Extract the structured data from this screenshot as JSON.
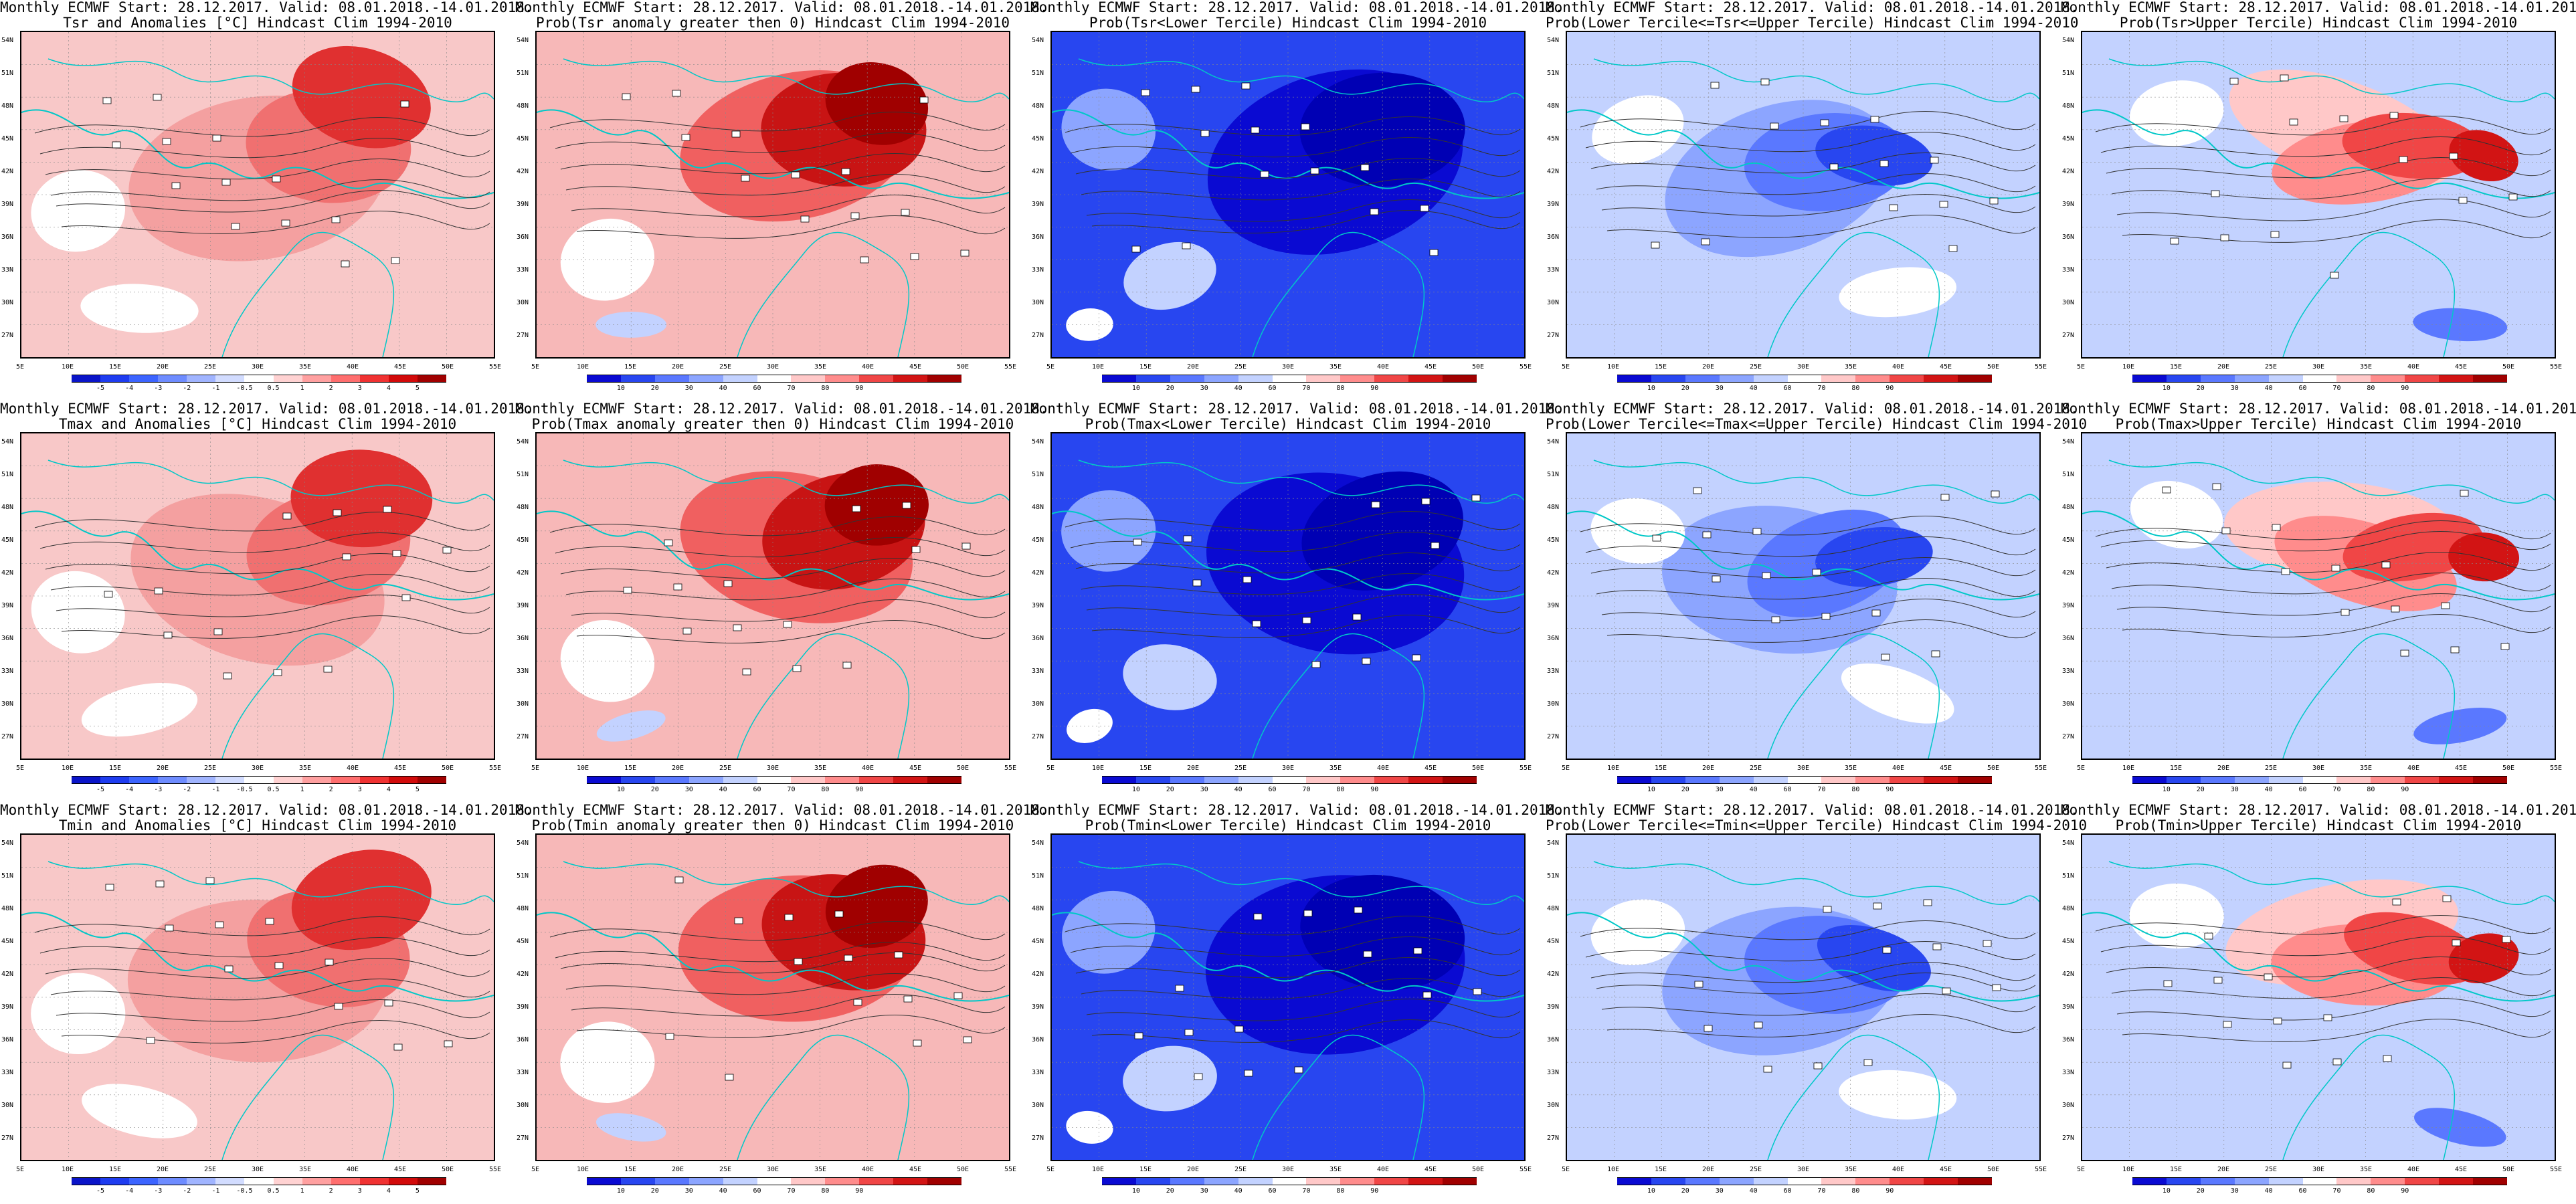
{
  "figure": {
    "header": "Monthly ECMWF Start: 28.12.2017. Valid: 08.01.2018.-14.01.2018.",
    "lat_labels": [
      "54N",
      "51N",
      "48N",
      "45N",
      "42N",
      "39N",
      "36N",
      "33N",
      "30N",
      "27N"
    ],
    "lon_labels": [
      "5E",
      "10E",
      "15E",
      "20E",
      "25E",
      "30E",
      "35E",
      "40E",
      "45E",
      "50E",
      "55E"
    ]
  },
  "colorbars": {
    "anomaly": {
      "ticks": [
        "-5",
        "-4",
        "-3",
        "-2",
        "-1",
        "-0.5",
        "0.5",
        "1",
        "2",
        "3",
        "4",
        "5"
      ],
      "colors": [
        "#0a14c8",
        "#1e3cf0",
        "#3c64ff",
        "#6e8cff",
        "#a0b4ff",
        "#d2dcff",
        "#ffffff",
        "#ffd2d2",
        "#ffa0a0",
        "#ff6e6e",
        "#f03232",
        "#d20a0a",
        "#a00000"
      ]
    },
    "probability": {
      "ticks": [
        "10",
        "20",
        "30",
        "40",
        "60",
        "70",
        "80",
        "90"
      ],
      "colors": [
        "#0a0ad2",
        "#2846f0",
        "#5a78ff",
        "#8ca5ff",
        "#c3d2ff",
        "#ffffff",
        "#ffc8c8",
        "#ff8c8c",
        "#f04646",
        "#d21414",
        "#a00000"
      ]
    }
  },
  "panels": [
    {
      "title2": "Tsr and Anomalies [°C] Hindcast Clim 1994-2010",
      "bar": "anomaly",
      "theme": "anom"
    },
    {
      "title2": "Prob(Tsr anomaly greater then 0) Hindcast Clim 1994-2010",
      "bar": "probability",
      "theme": "prob"
    },
    {
      "title2": "Prob(Tsr<Lower Tercile) Hindcast Clim 1994-2010",
      "bar": "probability",
      "theme": "lower"
    },
    {
      "title2": "Prob(Lower Tercile<=Tsr<=Upper Tercile) Hindcast Clim 1994-2010",
      "bar": "probability",
      "theme": "middle"
    },
    {
      "title2": "Prob(Tsr>Upper Tercile) Hindcast Clim 1994-2010",
      "bar": "probability",
      "theme": "upper"
    },
    {
      "title2": "Tmax and Anomalies [°C] Hindcast Clim 1994-2010",
      "bar": "anomaly",
      "theme": "anom"
    },
    {
      "title2": "Prob(Tmax anomaly greater then 0) Hindcast Clim 1994-2010",
      "bar": "probability",
      "theme": "prob"
    },
    {
      "title2": "Prob(Tmax<Lower Tercile) Hindcast Clim 1994-2010",
      "bar": "probability",
      "theme": "lower"
    },
    {
      "title2": "Prob(Lower Tercile<=Tmax<=Upper Tercile) Hindcast Clim 1994-2010",
      "bar": "probability",
      "theme": "middle"
    },
    {
      "title2": "Prob(Tmax>Upper Tercile) Hindcast Clim 1994-2010",
      "bar": "probability",
      "theme": "upper"
    },
    {
      "title2": "Tmin and Anomalies [°C] Hindcast Clim 1994-2010",
      "bar": "anomaly",
      "theme": "anom"
    },
    {
      "title2": "Prob(Tmin anomaly greater then 0) Hindcast Clim 1994-2010",
      "bar": "probability",
      "theme": "prob"
    },
    {
      "title2": "Prob(Tmin<Lower Tercile) Hindcast Clim 1994-2010",
      "bar": "probability",
      "theme": "lower"
    },
    {
      "title2": "Prob(Lower Tercile<=Tmin<=Upper Tercile) Hindcast Clim 1994-2010",
      "bar": "probability",
      "theme": "middle"
    },
    {
      "title2": "Prob(Tmin>Upper Tercile) Hindcast Clim 1994-2010",
      "bar": "probability",
      "theme": "upper"
    }
  ]
}
